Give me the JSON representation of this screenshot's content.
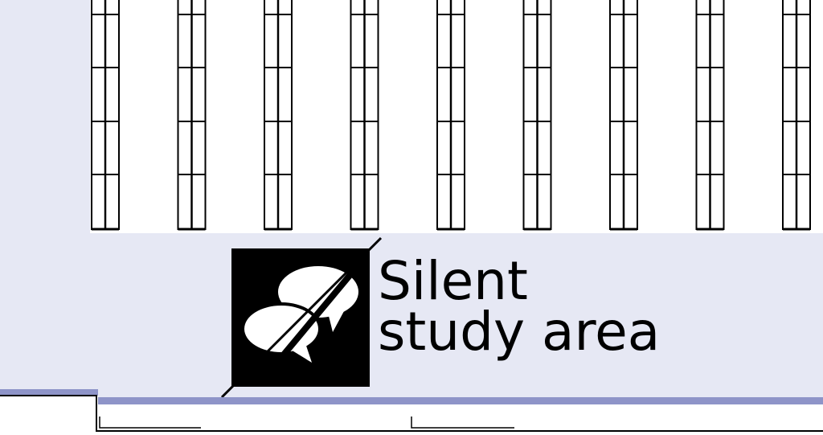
{
  "zone_label": {
    "line1": "Silent",
    "line2": "study area"
  },
  "zone_icon": "no-talking-icon",
  "colors": {
    "background": "#e6e8f4",
    "shelf_block": "#ffffff",
    "shelf_lines": "#000000",
    "wall_accent": "#8e94c8",
    "sign_background": "#000000"
  },
  "bookshelf_columns": 9,
  "shelf_rows": 4
}
